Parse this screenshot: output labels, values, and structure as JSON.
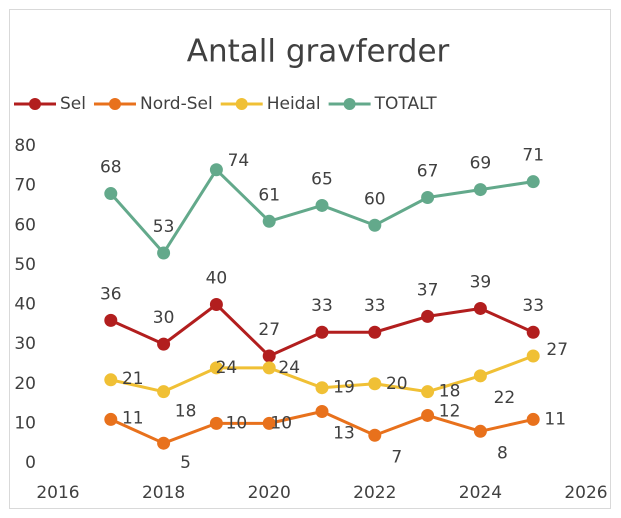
{
  "chart_data": {
    "type": "line",
    "title": "Antall gravferder",
    "x": [
      2017,
      2018,
      2019,
      2020,
      2021,
      2022,
      2023,
      2024,
      2025
    ],
    "series": [
      {
        "name": "Sel",
        "color": "#b21e1e",
        "values": [
          36,
          30,
          40,
          27,
          33,
          33,
          37,
          39,
          33
        ]
      },
      {
        "name": "Nord-Sel",
        "color": "#e8711c",
        "values": [
          11,
          5,
          10,
          10,
          13,
          7,
          12,
          8,
          11
        ]
      },
      {
        "name": "Heidal",
        "color": "#f0c035",
        "values": [
          21,
          18,
          24,
          24,
          19,
          20,
          18,
          22,
          27
        ]
      },
      {
        "name": "TOTALT",
        "color": "#63a98b",
        "values": [
          68,
          53,
          74,
          61,
          65,
          60,
          67,
          69,
          71
        ]
      }
    ],
    "xlim": [
      2016,
      2026
    ],
    "xticks": [
      2016,
      2018,
      2020,
      2022,
      2024,
      2026
    ],
    "ylim": [
      0,
      80
    ],
    "yticks": [
      0,
      10,
      20,
      30,
      40,
      50,
      60,
      70,
      80
    ],
    "legend": "top",
    "grid": false
  }
}
